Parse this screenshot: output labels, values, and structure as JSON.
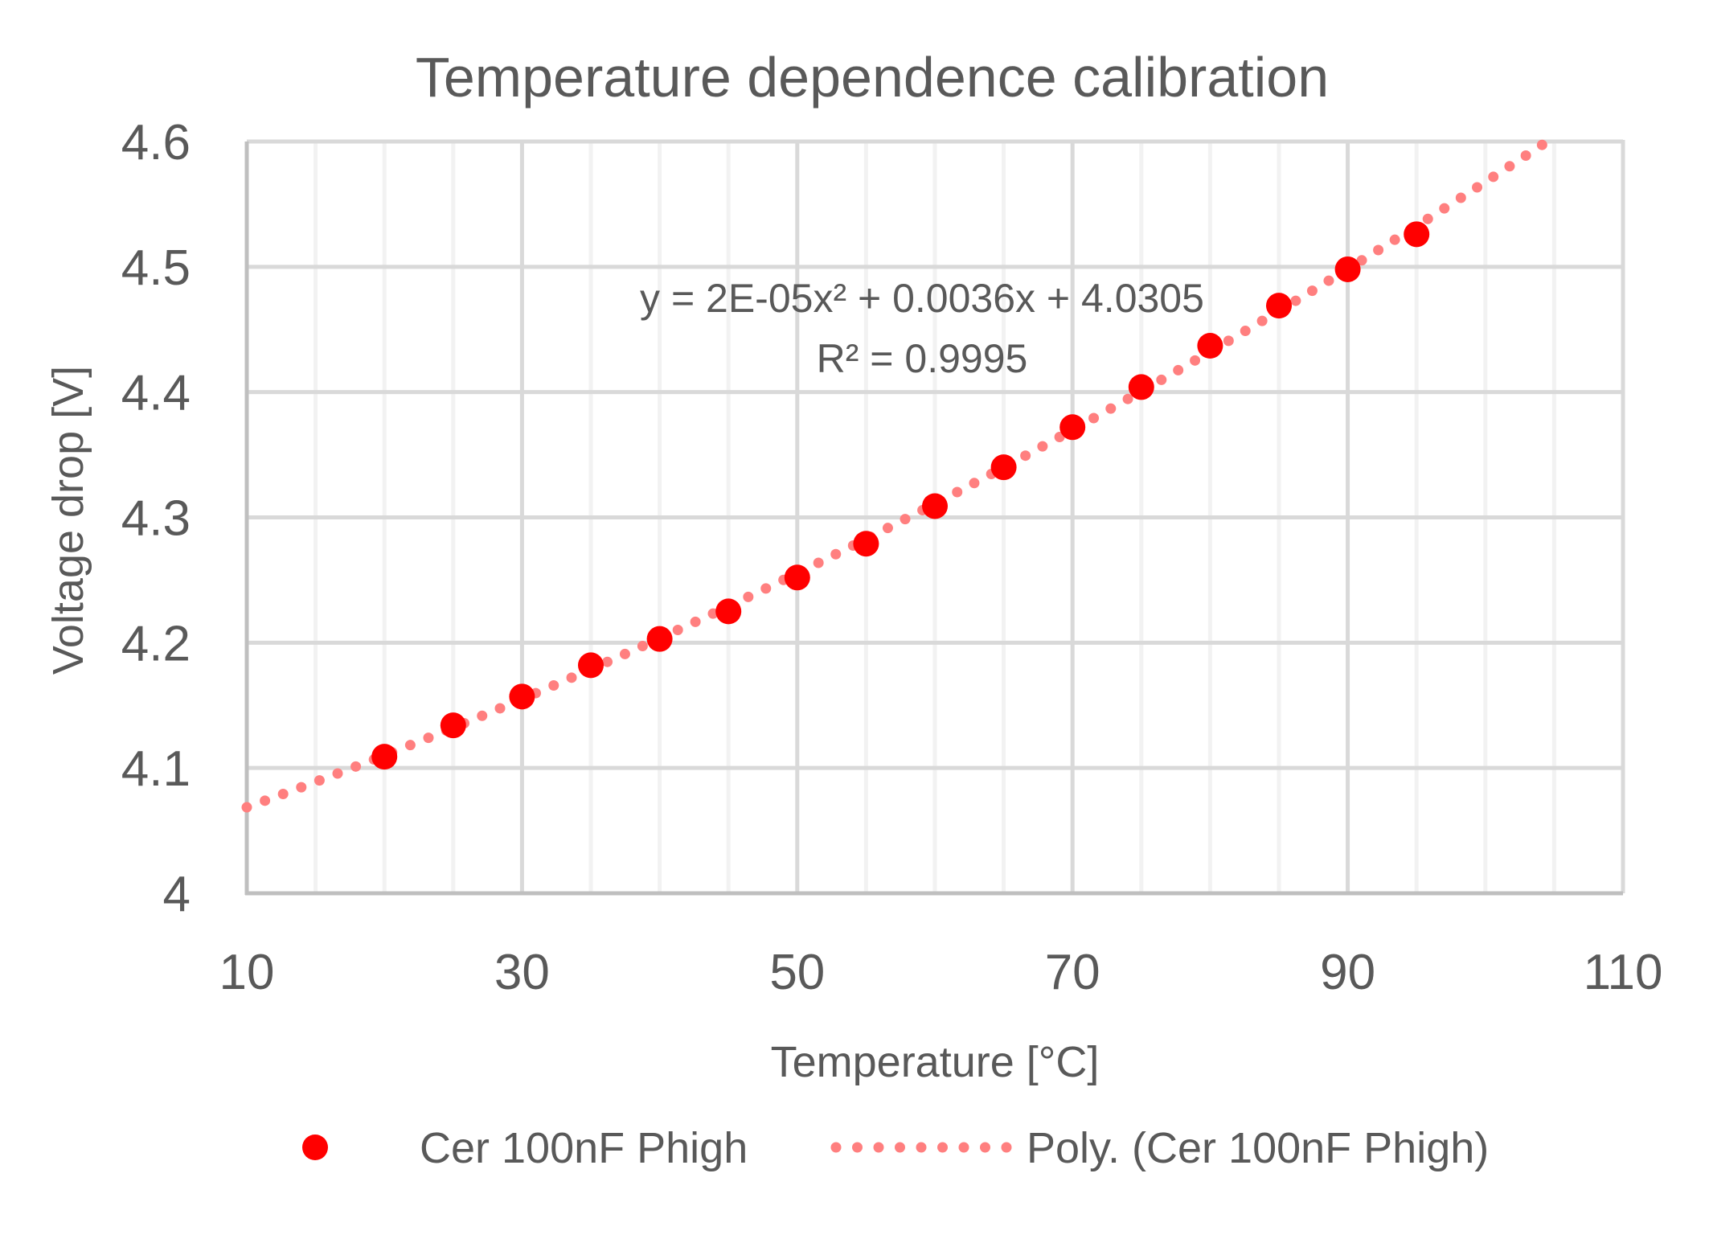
{
  "chart_data": {
    "type": "scatter",
    "title": "Temperature dependence calibration",
    "xlabel": "Temperature [°C]",
    "ylabel": "Voltage drop [V]",
    "xlim": [
      10,
      110
    ],
    "ylim": [
      4.0,
      4.6
    ],
    "x_major_step": 20,
    "x_minor_step": 5,
    "y_major_step": 0.1,
    "x_ticks": [
      "10",
      "30",
      "50",
      "70",
      "90",
      "110"
    ],
    "y_ticks": [
      "4",
      "4.1",
      "4.2",
      "4.3",
      "4.4",
      "4.5",
      "4.6"
    ],
    "grid": true,
    "series": [
      {
        "name": "Cer 100nF Phigh",
        "color": "#FF0000",
        "marker": "circle",
        "x": [
          20,
          25,
          30,
          35,
          40,
          45,
          50,
          55,
          60,
          65,
          70,
          75,
          80,
          85,
          90,
          95
        ],
        "y": [
          4.109,
          4.134,
          4.157,
          4.182,
          4.203,
          4.225,
          4.252,
          4.279,
          4.309,
          4.34,
          4.372,
          4.404,
          4.437,
          4.469,
          4.498,
          4.526
        ]
      }
    ],
    "trendline": {
      "name": "Poly. (Cer 100nF Phigh)",
      "type": "polynomial",
      "order": 2,
      "color": "#FF7F7F",
      "style": "dotted",
      "x_range": [
        10,
        110
      ],
      "equation": "y = 2E-05x² + 0.0036x + 4.0305",
      "r_squared": "R² = 0.9995"
    },
    "legend": {
      "position": "bottom",
      "entries": [
        {
          "label": "Cer 100nF Phigh",
          "kind": "marker",
          "color": "#FF0000"
        },
        {
          "label": "Poly. (Cer 100nF Phigh)",
          "kind": "dotted-line",
          "color": "#FF7F7F"
        }
      ]
    }
  }
}
